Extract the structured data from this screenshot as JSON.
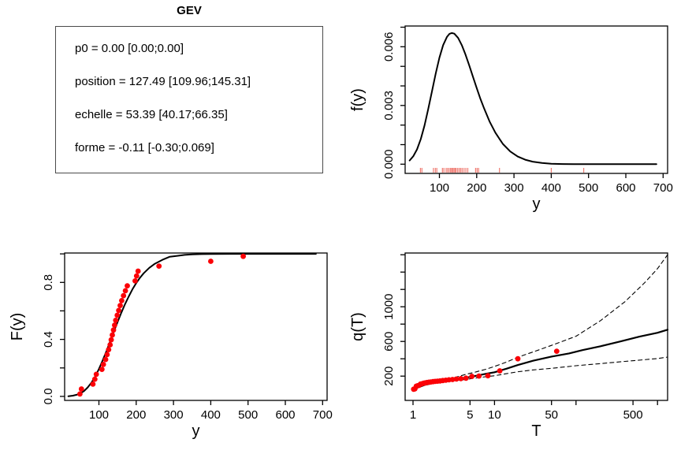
{
  "params": {
    "title": "GEV",
    "lines": [
      "p0 = 0.00 [0.00;0.00]",
      "position = 127.49 [109.96;145.31]",
      "echelle = 53.39 [40.17;66.35]",
      "forme = -0.11 [-0.30;0.069]"
    ]
  },
  "colors": {
    "frame": "#000000",
    "curve": "#000000",
    "points": "#fb0006",
    "rug": "#ef7b72",
    "background": "#ffffff"
  },
  "chart_data": [
    {
      "id": "density",
      "type": "line",
      "title": "",
      "xlabel": "y",
      "ylabel": "f(y)",
      "xlog": false,
      "xlim": [
        8,
        712
      ],
      "ylim": [
        -0.00047,
        0.00706
      ],
      "xticks": {
        "values": [
          100,
          200,
          300,
          400,
          500,
          600,
          700
        ],
        "labels": [
          "100",
          "200",
          "300",
          "400",
          "500",
          "600",
          "700"
        ]
      },
      "yticks": {
        "values": [
          0,
          0.001,
          0.002,
          0.003,
          0.004,
          0.005,
          0.006,
          0.007
        ],
        "labels": [
          "0.000",
          "",
          "",
          "0.003",
          "",
          "",
          "0.006",
          ""
        ]
      },
      "series": [
        {
          "name": "fitted-density-curve",
          "width": 2,
          "dash": null,
          "points": [
            [
              20,
              0.00019
            ],
            [
              30,
              0.00041
            ],
            [
              40,
              0.00076
            ],
            [
              50,
              0.00129
            ],
            [
              60,
              0.00198
            ],
            [
              70,
              0.00282
            ],
            [
              80,
              0.00373
            ],
            [
              90,
              0.00463
            ],
            [
              100,
              0.00544
            ],
            [
              110,
              0.00608
            ],
            [
              120,
              0.0065
            ],
            [
              127,
              0.00666
            ],
            [
              133,
              0.0067
            ],
            [
              140,
              0.00667
            ],
            [
              150,
              0.00645
            ],
            [
              160,
              0.00608
            ],
            [
              170,
              0.0056
            ],
            [
              180,
              0.00504
            ],
            [
              190,
              0.00446
            ],
            [
              200,
              0.00389
            ],
            [
              210,
              0.00334
            ],
            [
              220,
              0.00284
            ],
            [
              235,
              0.00216
            ],
            [
              250,
              0.00161
            ],
            [
              270,
              0.00104
            ],
            [
              290,
              0.00065
            ],
            [
              310,
              0.00039
            ],
            [
              330,
              0.00023
            ],
            [
              350,
              0.00013
            ],
            [
              375,
              6e-05
            ],
            [
              400,
              2.5e-05
            ],
            [
              430,
              1e-05
            ],
            [
              460,
              5e-06
            ],
            [
              500,
              2e-06
            ],
            [
              550,
              1e-06
            ],
            [
              600,
              0
            ],
            [
              650,
              0
            ],
            [
              682,
              0
            ]
          ]
        }
      ],
      "rug": [
        49,
        53,
        84,
        89,
        93,
        108,
        112,
        118,
        122,
        126,
        130,
        133,
        136,
        139,
        142,
        145,
        149,
        153,
        157,
        161,
        166,
        171,
        176,
        197,
        201,
        205,
        261,
        400,
        487
      ],
      "points": []
    },
    {
      "id": "cdf",
      "type": "line",
      "title": "",
      "xlabel": "y",
      "ylabel": "F(y)",
      "xlog": false,
      "xlim": [
        8,
        712
      ],
      "ylim": [
        -0.028,
        1.006
      ],
      "xticks": {
        "values": [
          100,
          200,
          300,
          400,
          500,
          600,
          700
        ],
        "labels": [
          "100",
          "200",
          "300",
          "400",
          "500",
          "600",
          "700"
        ]
      },
      "yticks": {
        "values": [
          0,
          0.2,
          0.4,
          0.6,
          0.8,
          1.0
        ],
        "labels": [
          "0.0",
          "",
          "0.4",
          "",
          "0.8",
          ""
        ]
      },
      "series": [
        {
          "name": "fitted-cdf-curve",
          "width": 2,
          "dash": null,
          "points": [
            [
              18,
              0.0015
            ],
            [
              30,
              0.005
            ],
            [
              40,
              0.011
            ],
            [
              50,
              0.021
            ],
            [
              60,
              0.038
            ],
            [
              70,
              0.063
            ],
            [
              80,
              0.097
            ],
            [
              90,
              0.14
            ],
            [
              100,
              0.192
            ],
            [
              110,
              0.252
            ],
            [
              120,
              0.317
            ],
            [
              130,
              0.385
            ],
            [
              140,
              0.454
            ],
            [
              150,
              0.522
            ],
            [
              160,
              0.587
            ],
            [
              170,
              0.647
            ],
            [
              180,
              0.702
            ],
            [
              190,
              0.752
            ],
            [
              200,
              0.795
            ],
            [
              210,
              0.832
            ],
            [
              220,
              0.864
            ],
            [
              235,
              0.902
            ],
            [
              250,
              0.931
            ],
            [
              270,
              0.958
            ],
            [
              290,
              0.98
            ],
            [
              310,
              0.986
            ],
            [
              330,
              0.993
            ],
            [
              350,
              0.996
            ],
            [
              375,
              0.998
            ],
            [
              400,
              0.9995
            ],
            [
              450,
              0.9999
            ],
            [
              500,
              1
            ],
            [
              560,
              1
            ],
            [
              620,
              1
            ],
            [
              682,
              1
            ]
          ]
        }
      ],
      "rug": [],
      "points": [
        [
          49,
          0.017
        ],
        [
          53,
          0.052
        ],
        [
          84,
          0.086
        ],
        [
          89,
          0.121
        ],
        [
          93,
          0.155
        ],
        [
          108,
          0.19
        ],
        [
          112,
          0.224
        ],
        [
          118,
          0.259
        ],
        [
          122,
          0.293
        ],
        [
          126,
          0.328
        ],
        [
          130,
          0.362
        ],
        [
          133,
          0.397
        ],
        [
          136,
          0.431
        ],
        [
          139,
          0.466
        ],
        [
          142,
          0.5
        ],
        [
          145,
          0.534
        ],
        [
          149,
          0.569
        ],
        [
          153,
          0.603
        ],
        [
          157,
          0.638
        ],
        [
          161,
          0.672
        ],
        [
          166,
          0.707
        ],
        [
          171,
          0.741
        ],
        [
          176,
          0.776
        ],
        [
          197,
          0.81
        ],
        [
          201,
          0.845
        ],
        [
          205,
          0.879
        ],
        [
          261,
          0.914
        ],
        [
          400,
          0.948
        ],
        [
          487,
          0.983
        ]
      ]
    },
    {
      "id": "return",
      "type": "line",
      "title": "",
      "xlabel": "T",
      "ylabel": "q(T)",
      "xlog": true,
      "xlim": [
        0.8,
        1330
      ],
      "ylim": [
        -80,
        1620
      ],
      "xticks": {
        "values": [
          1,
          5,
          10,
          50,
          100,
          500,
          1000
        ],
        "labels": [
          "1",
          "5",
          "10",
          "50",
          "",
          "500",
          ""
        ]
      },
      "yticks": {
        "values": [
          200,
          400,
          600,
          800,
          1000,
          1200,
          1400,
          1600
        ],
        "labels": [
          "200",
          "",
          "600",
          "",
          "1000",
          "",
          "",
          ""
        ]
      },
      "series": [
        {
          "name": "return-level-curve",
          "width": 2.2,
          "dash": null,
          "points": [
            [
              1.02,
              45
            ],
            [
              1.15,
              70
            ],
            [
              1.35,
              95
            ],
            [
              1.6,
              118
            ],
            [
              2,
              140
            ],
            [
              2.6,
              158
            ],
            [
              3.5,
              172
            ],
            [
              4.5,
              182
            ],
            [
              6,
              205
            ],
            [
              8,
              228
            ],
            [
              10,
              245
            ],
            [
              14,
              285
            ],
            [
              19.2,
              327
            ],
            [
              30,
              378
            ],
            [
              50,
              425
            ],
            [
              82,
              462
            ],
            [
              120,
              500
            ],
            [
              200,
              545
            ],
            [
              350,
              600
            ],
            [
              600,
              655
            ],
            [
              1000,
              700
            ],
            [
              1330,
              735
            ]
          ]
        },
        {
          "name": "upper-confidence-band",
          "width": 1.1,
          "dash": "5,4",
          "points": [
            [
              1.02,
              50
            ],
            [
              1.3,
              90
            ],
            [
              1.7,
              125
            ],
            [
              2.2,
              150
            ],
            [
              3,
              175
            ],
            [
              4.5,
              222
            ],
            [
              6,
              250
            ],
            [
              8,
              282
            ],
            [
              10,
              312
            ],
            [
              14,
              362
            ],
            [
              19.2,
              417
            ],
            [
              30,
              480
            ],
            [
              50,
              555
            ],
            [
              100,
              660
            ],
            [
              200,
              840
            ],
            [
              400,
              1060
            ],
            [
              700,
              1280
            ],
            [
              1000,
              1440
            ],
            [
              1330,
              1600
            ]
          ]
        },
        {
          "name": "lower-confidence-band",
          "width": 1.1,
          "dash": "5,4",
          "points": [
            [
              1.02,
              40
            ],
            [
              1.3,
              85
            ],
            [
              1.7,
              112
            ],
            [
              2.2,
              130
            ],
            [
              3,
              145
            ],
            [
              4.5,
              162
            ],
            [
              6,
              180
            ],
            [
              8,
              195
            ],
            [
              10,
              205
            ],
            [
              14,
              228
            ],
            [
              19.2,
              250
            ],
            [
              30,
              272
            ],
            [
              50,
              290
            ],
            [
              100,
              320
            ],
            [
              200,
              345
            ],
            [
              400,
              370
            ],
            [
              700,
              390
            ],
            [
              1000,
              403
            ],
            [
              1330,
              420
            ]
          ]
        }
      ],
      "rug": [],
      "points": [
        [
          1.018,
          49
        ],
        [
          1.055,
          53
        ],
        [
          1.094,
          84
        ],
        [
          1.137,
          89
        ],
        [
          1.184,
          93
        ],
        [
          1.234,
          108
        ],
        [
          1.289,
          112
        ],
        [
          1.349,
          118
        ],
        [
          1.415,
          122
        ],
        [
          1.487,
          126
        ],
        [
          1.568,
          130
        ],
        [
          1.657,
          133
        ],
        [
          1.758,
          136
        ],
        [
          1.871,
          139
        ],
        [
          2.0,
          142
        ],
        [
          2.148,
          145
        ],
        [
          2.32,
          149
        ],
        [
          2.522,
          153
        ],
        [
          2.762,
          157
        ],
        [
          3.053,
          161
        ],
        [
          3.412,
          166
        ],
        [
          3.867,
          171
        ],
        [
          4.462,
          176
        ],
        [
          5.273,
          197
        ],
        [
          6.444,
          201
        ],
        [
          8.286,
          205
        ],
        [
          11.6,
          261
        ],
        [
          19.33,
          400
        ],
        [
          58,
          487
        ]
      ]
    }
  ]
}
